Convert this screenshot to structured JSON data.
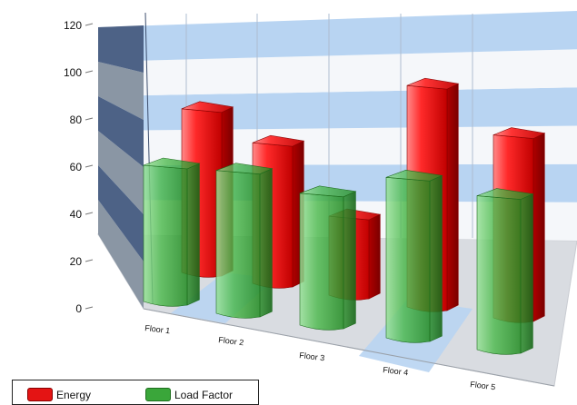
{
  "chart_data": {
    "type": "bar",
    "categories": [
      "Floor 1",
      "Floor 2",
      "Floor 3",
      "Floor 4",
      "Floor 5"
    ],
    "series": [
      {
        "name": "Energy",
        "values": [
          85,
          73,
          41,
          115,
          95
        ],
        "color": "#e41414"
      },
      {
        "name": "Load Factor",
        "values": [
          62,
          65,
          60,
          73,
          70
        ],
        "color": "#3aa63a"
      }
    ],
    "yticks": [
      0,
      20,
      40,
      60,
      80,
      100,
      120
    ],
    "ylim": [
      0,
      120
    ],
    "legend_position": "bottom-left",
    "grid": true,
    "title": "",
    "xlabel": "",
    "ylabel": ""
  },
  "colors": {
    "band_blue": "#b8d4f2",
    "band_white": "#f5f7fa",
    "side_dark": "#4d6286",
    "side_mid": "#8a96a4",
    "floor_light": "#d9dce1",
    "floor_blue": "#b8d4f2"
  }
}
